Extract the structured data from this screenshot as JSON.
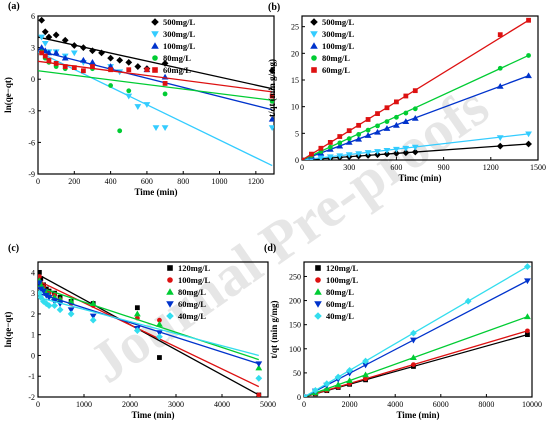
{
  "watermark": "Journal Pre-proofs",
  "chart_data": [
    {
      "panel": "(a)",
      "type": "scatter",
      "xlabel": "Time (min)",
      "ylabel": "ln(qe−qt)",
      "xlim": [
        0,
        1300
      ],
      "ylim": [
        -9,
        6
      ],
      "xticks": [
        0,
        200,
        400,
        600,
        800,
        1000,
        1200
      ],
      "yticks": [
        -9,
        -6,
        -3,
        0,
        3,
        6
      ],
      "legend_position": "top-right",
      "series": [
        {
          "name": "500mg/L",
          "color": "#000000",
          "marker": "diamond",
          "x": [
            20,
            40,
            60,
            100,
            150,
            200,
            250,
            300,
            350,
            400,
            450,
            500,
            550,
            600,
            700,
            1290
          ],
          "y": [
            5.6,
            4.5,
            4.0,
            4.2,
            3.7,
            3.2,
            3.0,
            2.7,
            2.5,
            2.0,
            1.8,
            1.6,
            1.2,
            1.0,
            1.5,
            0.8
          ],
          "fit": [
            [
              0,
              4.0
            ],
            [
              1290,
              -0.9
            ]
          ]
        },
        {
          "name": "300mg/L",
          "color": "#33ccff",
          "marker": "triangle-down",
          "x": [
            20,
            40,
            60,
            100,
            150,
            200,
            250,
            300,
            400,
            450,
            500,
            550,
            600,
            650,
            700,
            1290
          ],
          "y": [
            4.0,
            3.4,
            2.6,
            2.6,
            2.2,
            2.5,
            1.6,
            1.2,
            1.2,
            0.7,
            -1.6,
            -2.6,
            -2.4,
            -4.6,
            -4.6,
            -4.6
          ],
          "fit": [
            [
              0,
              2.6
            ],
            [
              1290,
              -8.2
            ]
          ]
        },
        {
          "name": "100mg/L",
          "color": "#0033cc",
          "marker": "triangle-up",
          "x": [
            20,
            40,
            60,
            100,
            150,
            250,
            300,
            400,
            600,
            700,
            1290
          ],
          "y": [
            3.0,
            2.7,
            2.5,
            2.5,
            2.0,
            1.8,
            1.6,
            1.2,
            0.9,
            0.2,
            -3.8
          ],
          "fit": [
            [
              0,
              2.7
            ],
            [
              1290,
              -2.9
            ]
          ]
        },
        {
          "name": "80mg/L",
          "color": "#00cc33",
          "marker": "circle",
          "x": [
            20,
            40,
            60,
            100,
            150,
            300,
            400,
            450,
            500,
            700,
            1290
          ],
          "y": [
            2.6,
            2.0,
            1.6,
            1.2,
            1.0,
            1.0,
            -0.6,
            -4.9,
            -1.1,
            -1.4,
            -2.1
          ],
          "fit": [
            [
              0,
              0.8
            ],
            [
              1290,
              -2.0
            ]
          ]
        },
        {
          "name": "60mg/L",
          "color": "#dd1111",
          "marker": "square",
          "x": [
            20,
            40,
            60,
            100,
            150,
            200,
            250,
            300,
            400,
            500,
            600,
            700,
            1290
          ],
          "y": [
            2.5,
            2.2,
            1.8,
            1.5,
            1.2,
            1.1,
            0.8,
            1.2,
            0.9,
            0.9,
            0.9,
            -0.4,
            -1.6
          ],
          "fit": [
            [
              0,
              1.7
            ],
            [
              1290,
              -1.2
            ]
          ]
        }
      ]
    },
    {
      "panel": "(b)",
      "type": "scatter",
      "xlabel": "Timc (min)",
      "ylabel": "t/qt (min g/mg)",
      "xlim": [
        0,
        1500
      ],
      "ylim": [
        0,
        27
      ],
      "xticks": [
        0,
        300,
        600,
        900,
        1200,
        1500
      ],
      "yticks": [
        0,
        5,
        10,
        15,
        20,
        25
      ],
      "legend_position": "top-left",
      "series": [
        {
          "name": "500mg/L",
          "color": "#000000",
          "marker": "diamond",
          "x": [
            0,
            60,
            120,
            180,
            240,
            300,
            360,
            420,
            480,
            540,
            600,
            660,
            720,
            1260,
            1440
          ],
          "y": [
            0,
            0.12,
            0.25,
            0.37,
            0.5,
            0.62,
            0.75,
            0.87,
            1.0,
            1.12,
            1.25,
            1.37,
            1.5,
            2.6,
            3.0
          ],
          "fit": [
            [
              0,
              0
            ],
            [
              1440,
              3.0
            ]
          ]
        },
        {
          "name": "300mg/L",
          "color": "#33ccff",
          "marker": "triangle-down",
          "x": [
            0,
            60,
            120,
            180,
            240,
            300,
            360,
            420,
            480,
            540,
            600,
            660,
            720,
            1260,
            1440
          ],
          "y": [
            0,
            0.2,
            0.4,
            0.6,
            0.8,
            1.0,
            1.2,
            1.4,
            1.6,
            1.8,
            2.0,
            2.2,
            2.4,
            4.2,
            4.9
          ],
          "fit": [
            [
              0,
              0
            ],
            [
              1440,
              4.9
            ]
          ]
        },
        {
          "name": "100mg/L",
          "color": "#0033cc",
          "marker": "triangle-up",
          "x": [
            0,
            60,
            120,
            180,
            240,
            300,
            360,
            420,
            480,
            540,
            600,
            660,
            720,
            1260,
            1440
          ],
          "y": [
            0,
            0.7,
            1.3,
            2.0,
            2.6,
            3.3,
            3.9,
            4.6,
            5.2,
            5.9,
            6.5,
            7.2,
            7.8,
            13.8,
            15.8
          ],
          "fit": [
            [
              0,
              0
            ],
            [
              1440,
              15.8
            ]
          ]
        },
        {
          "name": "80mg/L",
          "color": "#00cc33",
          "marker": "circle",
          "x": [
            0,
            60,
            120,
            180,
            240,
            300,
            360,
            420,
            480,
            540,
            600,
            660,
            720,
            1260,
            1440
          ],
          "y": [
            0,
            0.8,
            1.6,
            2.4,
            3.2,
            4.0,
            4.8,
            5.6,
            6.4,
            7.2,
            8.0,
            8.8,
            9.6,
            17.2,
            19.6
          ],
          "fit": [
            [
              0,
              0
            ],
            [
              1440,
              19.6
            ]
          ]
        },
        {
          "name": "60mg/L",
          "color": "#dd1111",
          "marker": "square",
          "x": [
            0,
            60,
            120,
            180,
            240,
            300,
            360,
            420,
            480,
            540,
            600,
            660,
            720,
            1260,
            1440
          ],
          "y": [
            0,
            1.1,
            2.2,
            3.3,
            4.4,
            5.5,
            6.5,
            7.6,
            8.7,
            9.8,
            10.9,
            12.0,
            13.0,
            23.5,
            26.2
          ],
          "fit": [
            [
              0,
              0
            ],
            [
              1440,
              26.2
            ]
          ]
        }
      ]
    },
    {
      "panel": "(c)",
      "type": "scatter",
      "xlabel": "Time (min)",
      "ylabel": "ln(qe−qt)",
      "xlim": [
        0,
        5000
      ],
      "ylim": [
        -2,
        4.5
      ],
      "xticks": [
        0,
        1000,
        2000,
        3000,
        4000,
        5000
      ],
      "yticks": [
        -2,
        -1,
        0,
        1,
        2,
        3,
        4
      ],
      "legend_position": "top-right",
      "series": [
        {
          "name": "120mg/L",
          "color": "#000000",
          "marker": "square",
          "x": [
            30,
            60,
            120,
            180,
            240,
            360,
            480,
            720,
            1200,
            2160,
            2640,
            4800
          ],
          "y": [
            4.0,
            3.7,
            3.4,
            3.2,
            3.1,
            3.0,
            2.8,
            2.6,
            2.5,
            2.3,
            -0.1,
            -1.9
          ],
          "fit": [
            [
              0,
              3.9
            ],
            [
              4800,
              -1.9
            ]
          ]
        },
        {
          "name": "100mg/L",
          "color": "#dd1111",
          "marker": "circle",
          "x": [
            30,
            60,
            120,
            180,
            240,
            360,
            480,
            720,
            1200,
            2160,
            2640,
            4800
          ],
          "y": [
            3.8,
            3.5,
            3.3,
            3.1,
            3.0,
            2.9,
            2.7,
            2.5,
            2.4,
            1.8,
            1.7,
            -1.9
          ],
          "fit": [
            [
              0,
              3.6
            ],
            [
              4800,
              -1.5
            ]
          ]
        },
        {
          "name": "80mg/L",
          "color": "#00cc33",
          "marker": "triangle-up",
          "x": [
            30,
            60,
            120,
            180,
            240,
            360,
            480,
            720,
            1200,
            2160,
            2640,
            4800
          ],
          "y": [
            3.6,
            3.4,
            3.2,
            3.0,
            2.9,
            2.8,
            2.7,
            2.6,
            2.5,
            2.0,
            1.5,
            -0.6
          ],
          "fit": [
            [
              0,
              3.3
            ],
            [
              4800,
              -0.2
            ]
          ]
        },
        {
          "name": "60mg/L",
          "color": "#0033cc",
          "marker": "triangle-down",
          "x": [
            30,
            60,
            120,
            180,
            240,
            360,
            480,
            720,
            1200,
            2160,
            2640,
            4800
          ],
          "y": [
            3.5,
            3.2,
            3.1,
            2.9,
            2.8,
            2.6,
            2.5,
            2.2,
            1.9,
            1.3,
            1.1,
            -0.4
          ],
          "fit": [
            [
              0,
              3.0
            ],
            [
              4800,
              -0.4
            ]
          ]
        },
        {
          "name": "40mg/L",
          "color": "#33ddee",
          "marker": "diamond",
          "x": [
            30,
            60,
            120,
            180,
            240,
            360,
            480,
            720,
            1200,
            2160,
            2640,
            4800
          ],
          "y": [
            3.0,
            2.8,
            2.6,
            2.5,
            2.4,
            2.4,
            2.2,
            2.0,
            1.7,
            1.2,
            0.9,
            -1.1
          ],
          "fit": [
            [
              0,
              2.8
            ],
            [
              4800,
              0.0
            ]
          ]
        }
      ]
    },
    {
      "panel": "(d)",
      "type": "scatter",
      "xlabel": "Time (min)",
      "ylabel": "t/qt (min g/mg)",
      "xlim": [
        0,
        10000
      ],
      "ylim": [
        0,
        280
      ],
      "xticks": [
        0,
        2000,
        4000,
        6000,
        8000,
        10000
      ],
      "yticks": [
        0,
        50,
        100,
        150,
        200,
        250
      ],
      "legend_position": "top-left",
      "series": [
        {
          "name": "120mg/L",
          "color": "#000000",
          "marker": "square",
          "x": [
            0,
            500,
            1000,
            1500,
            2000,
            2700,
            4800,
            9800
          ],
          "y": [
            0,
            6.6,
            13.2,
            19.8,
            26.4,
            35.6,
            63.4,
            129.4
          ],
          "fit": [
            [
              0,
              0
            ],
            [
              9800,
              129.4
            ]
          ]
        },
        {
          "name": "100mg/L",
          "color": "#dd1111",
          "marker": "circle",
          "x": [
            0,
            500,
            1000,
            1500,
            2000,
            2700,
            4800,
            9800
          ],
          "y": [
            0,
            7.0,
            14.0,
            21.0,
            28.0,
            37.8,
            67.2,
            137.2
          ],
          "fit": [
            [
              0,
              0
            ],
            [
              9800,
              137.2
            ]
          ]
        },
        {
          "name": "80mg/L",
          "color": "#00cc33",
          "marker": "triangle-up",
          "x": [
            0,
            500,
            1000,
            1500,
            2000,
            2700,
            4800,
            9800
          ],
          "y": [
            0,
            8.5,
            17.0,
            25.5,
            34.0,
            45.9,
            81.6,
            166.6
          ],
          "fit": [
            [
              0,
              0
            ],
            [
              9800,
              166.6
            ]
          ]
        },
        {
          "name": "60mg/L",
          "color": "#0033cc",
          "marker": "triangle-down",
          "x": [
            0,
            500,
            1000,
            1500,
            2000,
            2700,
            4800,
            9800
          ],
          "y": [
            0,
            12.3,
            24.6,
            36.9,
            49.2,
            66.4,
            118.1,
            241.1
          ],
          "fit": [
            [
              0,
              0
            ],
            [
              9800,
              241.1
            ]
          ]
        },
        {
          "name": "40mg/L",
          "color": "#33ddee",
          "marker": "diamond",
          "x": [
            0,
            500,
            1000,
            1500,
            2000,
            2700,
            4800,
            7200,
            9800
          ],
          "y": [
            0,
            13.8,
            27.6,
            41.4,
            55.2,
            74.5,
            132.5,
            198.7,
            270.5
          ],
          "fit": [
            [
              0,
              0
            ],
            [
              9800,
              270.5
            ]
          ]
        }
      ]
    }
  ]
}
